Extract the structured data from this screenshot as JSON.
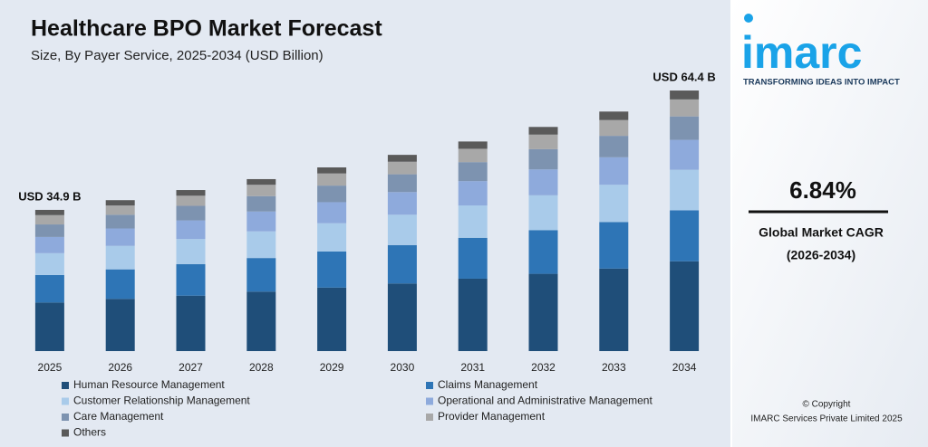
{
  "chart_data": {
    "type": "stacked-bar",
    "title": "Healthcare BPO Market Forecast",
    "subtitle": "Size, By Payer Service, 2025-2034 (USD Billion)",
    "categories": [
      "2025",
      "2026",
      "2027",
      "2028",
      "2029",
      "2030",
      "2031",
      "2032",
      "2033",
      "2034"
    ],
    "series": [
      {
        "name": "Human Resource Management",
        "color": "#1f4e79",
        "values": [
          12.0,
          12.9,
          13.7,
          14.7,
          15.7,
          16.7,
          17.9,
          19.1,
          20.4,
          22.2
        ]
      },
      {
        "name": "Claims Management",
        "color": "#2e75b6",
        "values": [
          6.8,
          7.3,
          7.8,
          8.3,
          8.9,
          9.5,
          10.1,
          10.8,
          11.5,
          12.6
        ]
      },
      {
        "name": "Customer Relationship Management",
        "color": "#a9cbea",
        "values": [
          5.4,
          5.8,
          6.2,
          6.6,
          7.0,
          7.5,
          8.0,
          8.6,
          9.2,
          10.0
        ]
      },
      {
        "name": "Operational and Administrative Management",
        "color": "#8eaadc",
        "values": [
          4.0,
          4.3,
          4.6,
          4.9,
          5.2,
          5.6,
          6.0,
          6.4,
          6.8,
          7.4
        ]
      },
      {
        "name": "Care Management",
        "color": "#7d93b0",
        "values": [
          3.1,
          3.4,
          3.6,
          3.8,
          4.1,
          4.4,
          4.7,
          5.0,
          5.3,
          5.8
        ]
      },
      {
        "name": "Provider Management",
        "color": "#a8a8a8",
        "values": [
          2.3,
          2.3,
          2.5,
          2.8,
          3.0,
          3.1,
          3.3,
          3.6,
          3.9,
          4.2
        ]
      },
      {
        "name": "Others",
        "color": "#5a5a5a",
        "values": [
          1.3,
          1.3,
          1.4,
          1.4,
          1.5,
          1.7,
          1.8,
          1.9,
          2.1,
          2.2
        ]
      }
    ],
    "annotations": [
      {
        "text": "USD 34.9 B",
        "category": 0
      },
      {
        "text": "USD 64.4 B",
        "category": 9
      }
    ],
    "ylim": [
      0,
      70
    ]
  },
  "panel": {
    "logo": "imarc",
    "tagline": "TRANSFORMING IDEAS INTO IMPACT",
    "cagr": "6.84%",
    "cagr_label": "Global Market CAGR",
    "cagr_period": "(2026-2034)",
    "copyright": "© Copyright",
    "company": "IMARC Services Private Limited 2025"
  }
}
